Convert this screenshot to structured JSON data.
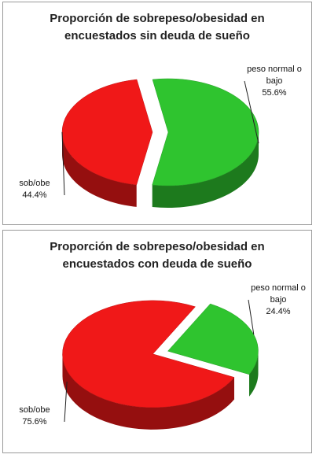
{
  "chart_data": [
    {
      "type": "pie",
      "title": "Proporción de sobrepeso/obesidad en encuestados sin deuda de sueño",
      "categories": [
        "peso normal o bajo",
        "sob/obe"
      ],
      "values": [
        55.6,
        44.4
      ],
      "value_labels": [
        "55.6%",
        "44.4%"
      ],
      "colors": [
        "#2fc42f",
        "#f01818"
      ]
    },
    {
      "type": "pie",
      "title": "Proporción de sobrepeso/obesidad en encuestados con deuda de sueño",
      "categories": [
        "peso normal o bajo",
        "sob/obe"
      ],
      "values": [
        24.4,
        75.6
      ],
      "value_labels": [
        "24.4%",
        "75.6%"
      ],
      "colors": [
        "#2fc42f",
        "#f01818"
      ]
    }
  ]
}
